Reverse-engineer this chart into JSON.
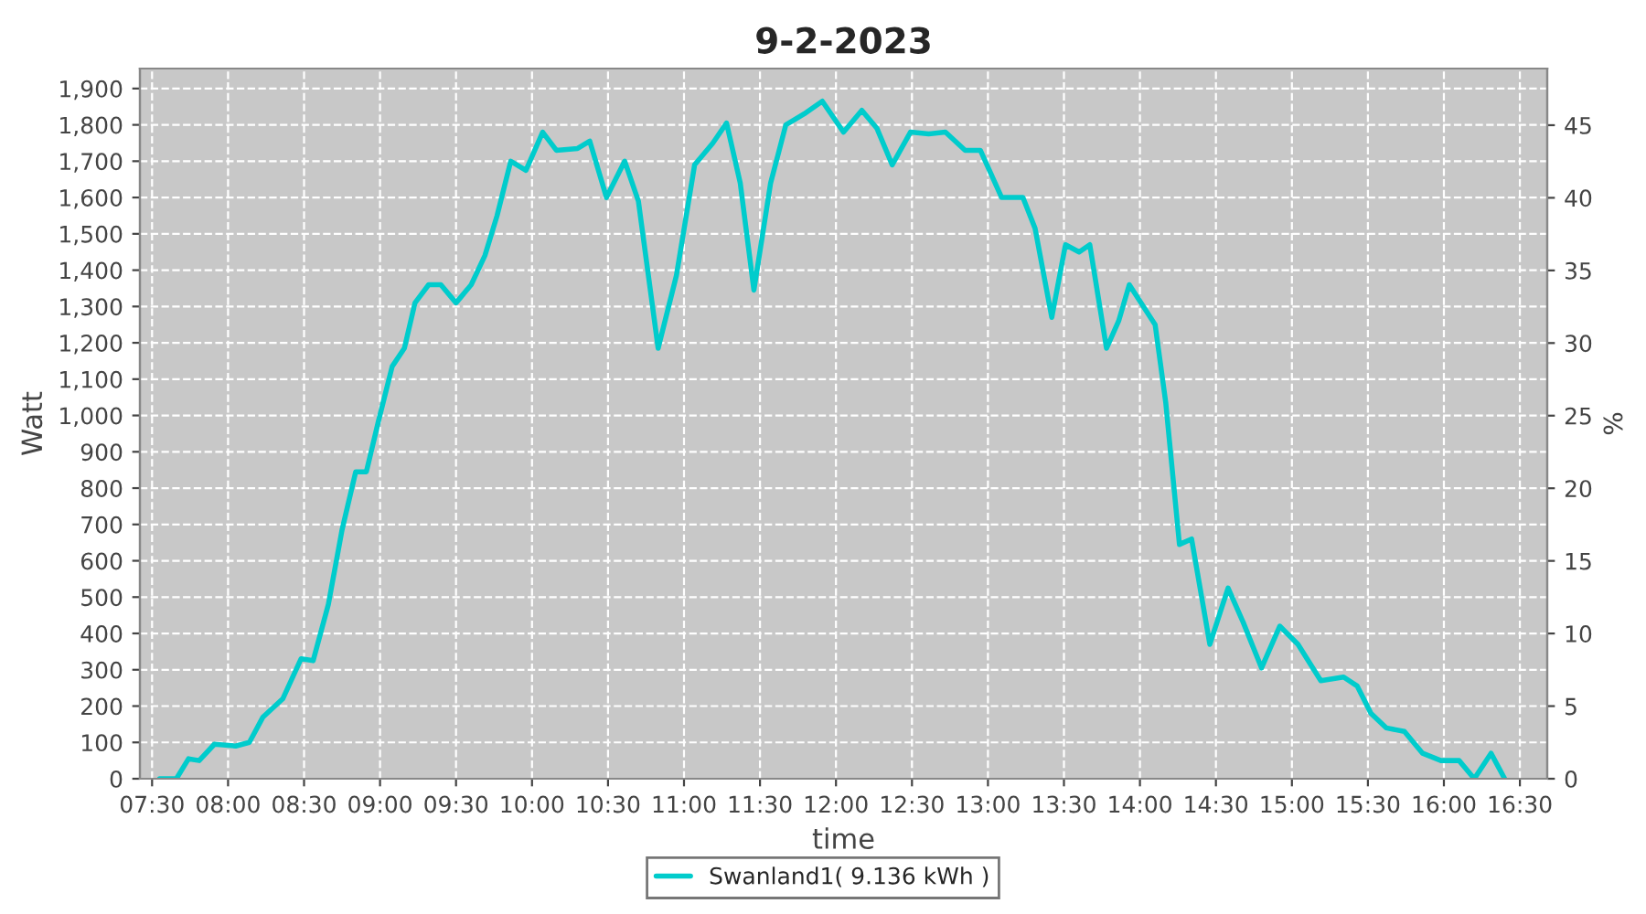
{
  "chart_data": {
    "type": "line",
    "title": "9-2-2023",
    "xlabel": "time",
    "ylabel": "Watt",
    "y2label": "%",
    "x": [
      7.55,
      7.66,
      7.74,
      7.81,
      7.91,
      8.05,
      8.14,
      8.23,
      8.36,
      8.48,
      8.56,
      8.66,
      8.75,
      8.84,
      8.91,
      8.99,
      9.08,
      9.16,
      9.23,
      9.32,
      9.4,
      9.5,
      9.6,
      9.69,
      9.77,
      9.86,
      9.96,
      10.07,
      10.16,
      10.3,
      10.38,
      10.49,
      10.61,
      10.7,
      10.83,
      10.95,
      11.07,
      11.19,
      11.28,
      11.37,
      11.46,
      11.57,
      11.67,
      11.79,
      11.91,
      12.05,
      12.17,
      12.27,
      12.37,
      12.49,
      12.61,
      12.72,
      12.85,
      12.95,
      13.09,
      13.23,
      13.31,
      13.42,
      13.51,
      13.6,
      13.67,
      13.78,
      13.86,
      13.93,
      14.03,
      14.1,
      14.17,
      14.26,
      14.34,
      14.46,
      14.58,
      14.68,
      14.8,
      14.92,
      15.04,
      15.19,
      15.34,
      15.43,
      15.52,
      15.62,
      15.74,
      15.86,
      15.98,
      16.1,
      16.2,
      16.31,
      16.4
    ],
    "series": [
      {
        "name": "Swanland1( 9.136 kWh )",
        "color": "#00cccc",
        "values": [
          0,
          0,
          55,
          50,
          95,
          90,
          100,
          170,
          220,
          330,
          325,
          480,
          685,
          845,
          845,
          985,
          1135,
          1185,
          1310,
          1360,
          1360,
          1310,
          1360,
          1440,
          1550,
          1700,
          1675,
          1780,
          1730,
          1735,
          1755,
          1600,
          1700,
          1590,
          1185,
          1385,
          1690,
          1750,
          1805,
          1640,
          1345,
          1640,
          1800,
          1830,
          1865,
          1780,
          1840,
          1790,
          1690,
          1780,
          1775,
          1780,
          1730,
          1730,
          1600,
          1600,
          1515,
          1270,
          1470,
          1450,
          1470,
          1185,
          1260,
          1360,
          1295,
          1250,
          1035,
          645,
          660,
          370,
          525,
          430,
          305,
          420,
          370,
          270,
          280,
          255,
          180,
          140,
          130,
          70,
          50,
          50,
          0,
          70,
          0
        ]
      }
    ],
    "xlim": [
      7.42,
      16.68
    ],
    "xticks": [
      {
        "value": 7.5,
        "label": "07:30"
      },
      {
        "value": 8,
        "label": "08:00"
      },
      {
        "value": 8.5,
        "label": "08:30"
      },
      {
        "value": 9,
        "label": "09:00"
      },
      {
        "value": 9.5,
        "label": "09:30"
      },
      {
        "value": 10,
        "label": "10:00"
      },
      {
        "value": 10.5,
        "label": "10:30"
      },
      {
        "value": 11,
        "label": "11:00"
      },
      {
        "value": 11.5,
        "label": "11:30"
      },
      {
        "value": 12,
        "label": "12:00"
      },
      {
        "value": 12.5,
        "label": "12:30"
      },
      {
        "value": 13,
        "label": "13:00"
      },
      {
        "value": 13.5,
        "label": "13:30"
      },
      {
        "value": 14,
        "label": "14:00"
      },
      {
        "value": 14.5,
        "label": "14:30"
      },
      {
        "value": 15,
        "label": "15:00"
      },
      {
        "value": 15.5,
        "label": "15:30"
      },
      {
        "value": 16,
        "label": "16:00"
      },
      {
        "value": 16.5,
        "label": "16:30"
      }
    ],
    "ylim": [
      0,
      1955
    ],
    "yticks": [
      0,
      100,
      200,
      300,
      400,
      500,
      600,
      700,
      800,
      900,
      {
        "value": 1000,
        "label": "1,000"
      },
      {
        "value": 1100,
        "label": "1,100"
      },
      {
        "value": 1200,
        "label": "1,200"
      },
      {
        "value": 1300,
        "label": "1,300"
      },
      {
        "value": 1400,
        "label": "1,400"
      },
      {
        "value": 1500,
        "label": "1,500"
      },
      {
        "value": 1600,
        "label": "1,600"
      },
      {
        "value": 1700,
        "label": "1,700"
      },
      {
        "value": 1800,
        "label": "1,800"
      },
      {
        "value": 1900,
        "label": "1,900"
      }
    ],
    "y2lim": [
      0,
      48.9
    ],
    "y2ticks": [
      0,
      5,
      10,
      15,
      20,
      25,
      30,
      35,
      40,
      45
    ],
    "grid": true,
    "legend": "bottom",
    "marker": "none",
    "line_style": "solid"
  }
}
